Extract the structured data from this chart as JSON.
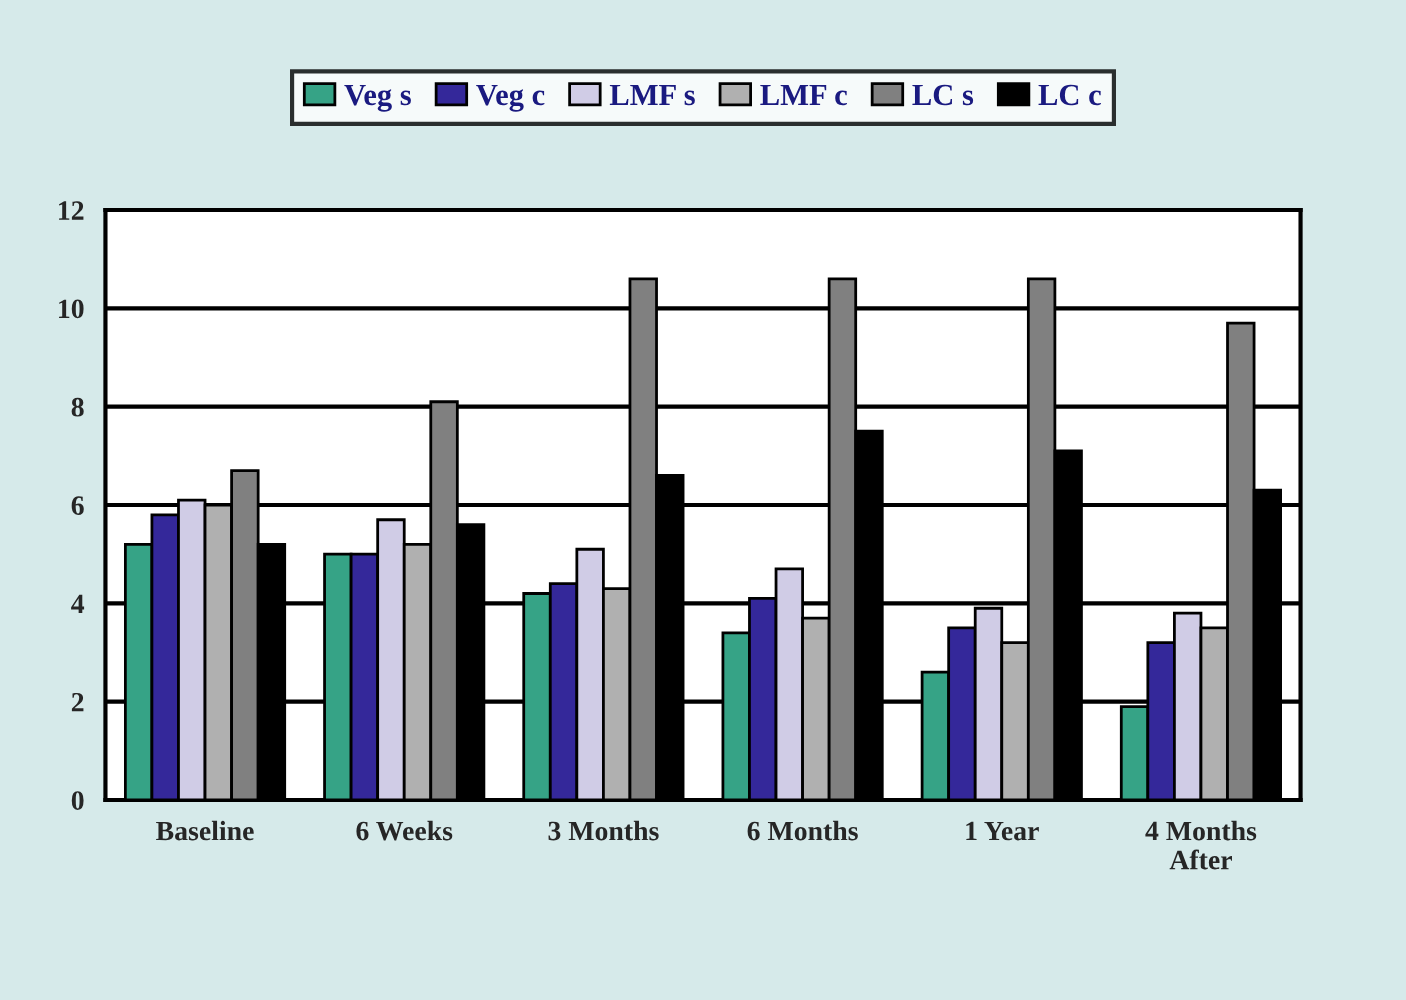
{
  "chart_data": {
    "type": "bar",
    "categories": [
      "Baseline",
      "6 Weeks",
      "3 Months",
      "6 Months",
      "1 Year",
      "4 Months\nAfter"
    ],
    "series": [
      {
        "name": "Veg s",
        "color": "#36a386",
        "values": [
          5.2,
          5.0,
          4.2,
          3.4,
          2.6,
          1.9
        ]
      },
      {
        "name": "Veg c",
        "color": "#34289a",
        "values": [
          5.8,
          5.0,
          4.4,
          4.1,
          3.5,
          3.2
        ]
      },
      {
        "name": "LMF s",
        "color": "#d0cce6",
        "values": [
          6.1,
          5.7,
          5.1,
          4.7,
          3.9,
          3.8
        ]
      },
      {
        "name": "LMF c",
        "color": "#b0b0b0",
        "values": [
          6.0,
          5.2,
          4.3,
          3.7,
          3.2,
          3.5
        ]
      },
      {
        "name": "LC s",
        "color": "#808080",
        "values": [
          6.7,
          8.1,
          10.6,
          10.6,
          10.6,
          9.7
        ]
      },
      {
        "name": "LC c",
        "color": "#000000",
        "values": [
          5.2,
          5.6,
          6.6,
          7.5,
          7.1,
          6.3
        ]
      }
    ],
    "ylim": [
      0,
      12
    ],
    "yticks": [
      0,
      2,
      4,
      6,
      8,
      10,
      12
    ],
    "grid": "y",
    "legend": "top"
  }
}
